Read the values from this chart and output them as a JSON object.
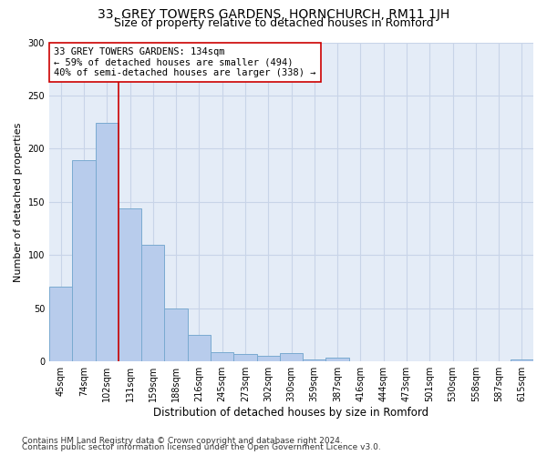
{
  "title1": "33, GREY TOWERS GARDENS, HORNCHURCH, RM11 1JH",
  "title2": "Size of property relative to detached houses in Romford",
  "xlabel": "Distribution of detached houses by size in Romford",
  "ylabel": "Number of detached properties",
  "categories": [
    "45sqm",
    "74sqm",
    "102sqm",
    "131sqm",
    "159sqm",
    "188sqm",
    "216sqm",
    "245sqm",
    "273sqm",
    "302sqm",
    "330sqm",
    "359sqm",
    "387sqm",
    "416sqm",
    "444sqm",
    "473sqm",
    "501sqm",
    "530sqm",
    "558sqm",
    "587sqm",
    "615sqm"
  ],
  "values": [
    70,
    189,
    224,
    144,
    110,
    50,
    25,
    9,
    7,
    5,
    8,
    2,
    4,
    0,
    0,
    0,
    0,
    0,
    0,
    0,
    2
  ],
  "bar_color": "#b8ccec",
  "bar_edge_color": "#7aaad0",
  "vline_x_index": 2.5,
  "vline_color": "#cc0000",
  "annotation_text": "33 GREY TOWERS GARDENS: 134sqm\n← 59% of detached houses are smaller (494)\n40% of semi-detached houses are larger (338) →",
  "annotation_box_color": "#ffffff",
  "annotation_box_edge": "#cc0000",
  "ylim": [
    0,
    300
  ],
  "yticks": [
    0,
    50,
    100,
    150,
    200,
    250,
    300
  ],
  "grid_color": "#c8d4e8",
  "bg_color": "#e4ecf7",
  "footer1": "Contains HM Land Registry data © Crown copyright and database right 2024.",
  "footer2": "Contains public sector information licensed under the Open Government Licence v3.0.",
  "title1_fontsize": 10,
  "title2_fontsize": 9,
  "xlabel_fontsize": 8.5,
  "ylabel_fontsize": 8,
  "tick_fontsize": 7,
  "annotation_fontsize": 7.5,
  "footer_fontsize": 6.5
}
